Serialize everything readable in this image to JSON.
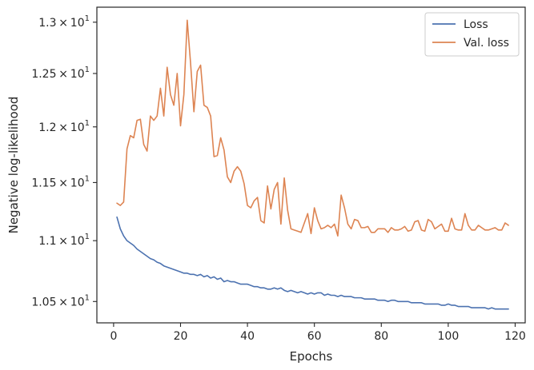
{
  "chart_data": {
    "type": "line",
    "title": "",
    "xlabel": "Epochs",
    "ylabel": "Negative log-likelihood",
    "xlim": [
      -5,
      123
    ],
    "ylim": [
      10.33,
      13.15
    ],
    "yscale": "log",
    "grid": false,
    "legend_position": "top-right",
    "x_ticks": [
      0,
      20,
      40,
      60,
      80,
      100,
      120
    ],
    "x_tick_labels": [
      "0",
      "20",
      "40",
      "60",
      "80",
      "100",
      "120"
    ],
    "y_ticks": [
      10.5,
      11,
      11.5,
      12,
      12.5,
      13
    ],
    "y_tick_labels": [
      {
        "mantissa": "1.05",
        "exp": "1"
      },
      {
        "mantissa": "1.1",
        "exp": "1"
      },
      {
        "mantissa": "1.15",
        "exp": "1"
      },
      {
        "mantissa": "1.2",
        "exp": "1"
      },
      {
        "mantissa": "1.25",
        "exp": "1"
      },
      {
        "mantissa": "1.3",
        "exp": "1"
      }
    ],
    "series": [
      {
        "name": "Loss",
        "color": "#4c72b0",
        "points": [
          [
            1,
            11.2
          ],
          [
            2,
            11.1
          ],
          [
            3,
            11.04
          ],
          [
            4,
            11.0
          ],
          [
            5,
            10.98
          ],
          [
            6,
            10.96
          ],
          [
            7,
            10.93
          ],
          [
            8,
            10.91
          ],
          [
            9,
            10.89
          ],
          [
            10,
            10.87
          ],
          [
            11,
            10.85
          ],
          [
            12,
            10.84
          ],
          [
            13,
            10.82
          ],
          [
            14,
            10.81
          ],
          [
            15,
            10.79
          ],
          [
            16,
            10.78
          ],
          [
            17,
            10.77
          ],
          [
            18,
            10.76
          ],
          [
            19,
            10.75
          ],
          [
            20,
            10.74
          ],
          [
            21,
            10.73
          ],
          [
            22,
            10.73
          ],
          [
            23,
            10.72
          ],
          [
            24,
            10.72
          ],
          [
            25,
            10.71
          ],
          [
            26,
            10.72
          ],
          [
            27,
            10.7
          ],
          [
            28,
            10.71
          ],
          [
            29,
            10.69
          ],
          [
            30,
            10.7
          ],
          [
            31,
            10.68
          ],
          [
            32,
            10.69
          ],
          [
            33,
            10.66
          ],
          [
            34,
            10.67
          ],
          [
            35,
            10.66
          ],
          [
            36,
            10.66
          ],
          [
            37,
            10.65
          ],
          [
            38,
            10.64
          ],
          [
            39,
            10.64
          ],
          [
            40,
            10.64
          ],
          [
            41,
            10.63
          ],
          [
            42,
            10.62
          ],
          [
            43,
            10.62
          ],
          [
            44,
            10.61
          ],
          [
            45,
            10.61
          ],
          [
            46,
            10.6
          ],
          [
            47,
            10.6
          ],
          [
            48,
            10.61
          ],
          [
            49,
            10.6
          ],
          [
            50,
            10.61
          ],
          [
            51,
            10.59
          ],
          [
            52,
            10.58
          ],
          [
            53,
            10.59
          ],
          [
            54,
            10.58
          ],
          [
            55,
            10.57
          ],
          [
            56,
            10.58
          ],
          [
            57,
            10.57
          ],
          [
            58,
            10.56
          ],
          [
            59,
            10.57
          ],
          [
            60,
            10.56
          ],
          [
            61,
            10.57
          ],
          [
            62,
            10.57
          ],
          [
            63,
            10.55
          ],
          [
            64,
            10.56
          ],
          [
            65,
            10.55
          ],
          [
            66,
            10.55
          ],
          [
            67,
            10.54
          ],
          [
            68,
            10.55
          ],
          [
            69,
            10.54
          ],
          [
            70,
            10.54
          ],
          [
            71,
            10.54
          ],
          [
            72,
            10.53
          ],
          [
            73,
            10.53
          ],
          [
            74,
            10.53
          ],
          [
            75,
            10.52
          ],
          [
            76,
            10.52
          ],
          [
            77,
            10.52
          ],
          [
            78,
            10.52
          ],
          [
            79,
            10.51
          ],
          [
            80,
            10.51
          ],
          [
            81,
            10.51
          ],
          [
            82,
            10.5
          ],
          [
            83,
            10.51
          ],
          [
            84,
            10.51
          ],
          [
            85,
            10.5
          ],
          [
            86,
            10.5
          ],
          [
            87,
            10.5
          ],
          [
            88,
            10.5
          ],
          [
            89,
            10.49
          ],
          [
            90,
            10.49
          ],
          [
            91,
            10.49
          ],
          [
            92,
            10.49
          ],
          [
            93,
            10.48
          ],
          [
            94,
            10.48
          ],
          [
            95,
            10.48
          ],
          [
            96,
            10.48
          ],
          [
            97,
            10.48
          ],
          [
            98,
            10.47
          ],
          [
            99,
            10.47
          ],
          [
            100,
            10.48
          ],
          [
            101,
            10.47
          ],
          [
            102,
            10.47
          ],
          [
            103,
            10.46
          ],
          [
            104,
            10.46
          ],
          [
            105,
            10.46
          ],
          [
            106,
            10.46
          ],
          [
            107,
            10.45
          ],
          [
            108,
            10.45
          ],
          [
            109,
            10.45
          ],
          [
            110,
            10.45
          ],
          [
            111,
            10.45
          ],
          [
            112,
            10.44
          ],
          [
            113,
            10.45
          ],
          [
            114,
            10.44
          ],
          [
            115,
            10.44
          ],
          [
            116,
            10.44
          ],
          [
            117,
            10.44
          ],
          [
            118,
            10.44
          ]
        ]
      },
      {
        "name": "Val. loss",
        "color": "#dd8452",
        "points": [
          [
            1,
            11.32
          ],
          [
            2,
            11.3
          ],
          [
            3,
            11.33
          ],
          [
            4,
            11.8
          ],
          [
            5,
            11.92
          ],
          [
            6,
            11.9
          ],
          [
            7,
            12.06
          ],
          [
            8,
            12.07
          ],
          [
            9,
            11.84
          ],
          [
            10,
            11.78
          ],
          [
            11,
            12.1
          ],
          [
            12,
            12.06
          ],
          [
            13,
            12.1
          ],
          [
            14,
            12.36
          ],
          [
            15,
            12.1
          ],
          [
            16,
            12.56
          ],
          [
            17,
            12.3
          ],
          [
            18,
            12.2
          ],
          [
            19,
            12.5
          ],
          [
            20,
            12.01
          ],
          [
            21,
            12.3
          ],
          [
            22,
            13.02
          ],
          [
            23,
            12.6
          ],
          [
            24,
            12.14
          ],
          [
            25,
            12.52
          ],
          [
            26,
            12.58
          ],
          [
            27,
            12.2
          ],
          [
            28,
            12.18
          ],
          [
            29,
            12.1
          ],
          [
            30,
            11.73
          ],
          [
            31,
            11.74
          ],
          [
            32,
            11.9
          ],
          [
            33,
            11.79
          ],
          [
            34,
            11.55
          ],
          [
            35,
            11.5
          ],
          [
            36,
            11.6
          ],
          [
            37,
            11.64
          ],
          [
            38,
            11.6
          ],
          [
            39,
            11.49
          ],
          [
            40,
            11.3
          ],
          [
            41,
            11.28
          ],
          [
            42,
            11.34
          ],
          [
            43,
            11.37
          ],
          [
            44,
            11.17
          ],
          [
            45,
            11.15
          ],
          [
            46,
            11.47
          ],
          [
            47,
            11.27
          ],
          [
            48,
            11.44
          ],
          [
            49,
            11.5
          ],
          [
            50,
            11.14
          ],
          [
            51,
            11.54
          ],
          [
            52,
            11.26
          ],
          [
            53,
            11.1
          ],
          [
            54,
            11.09
          ],
          [
            55,
            11.08
          ],
          [
            56,
            11.07
          ],
          [
            57,
            11.15
          ],
          [
            58,
            11.23
          ],
          [
            59,
            11.06
          ],
          [
            60,
            11.28
          ],
          [
            61,
            11.17
          ],
          [
            62,
            11.1
          ],
          [
            63,
            11.11
          ],
          [
            64,
            11.13
          ],
          [
            65,
            11.11
          ],
          [
            66,
            11.14
          ],
          [
            67,
            11.04
          ],
          [
            68,
            11.39
          ],
          [
            69,
            11.28
          ],
          [
            70,
            11.14
          ],
          [
            71,
            11.1
          ],
          [
            72,
            11.18
          ],
          [
            73,
            11.17
          ],
          [
            74,
            11.11
          ],
          [
            75,
            11.11
          ],
          [
            76,
            11.12
          ],
          [
            77,
            11.07
          ],
          [
            78,
            11.07
          ],
          [
            79,
            11.1
          ],
          [
            80,
            11.1
          ],
          [
            81,
            11.1
          ],
          [
            82,
            11.07
          ],
          [
            83,
            11.11
          ],
          [
            84,
            11.09
          ],
          [
            85,
            11.09
          ],
          [
            86,
            11.1
          ],
          [
            87,
            11.12
          ],
          [
            88,
            11.08
          ],
          [
            89,
            11.09
          ],
          [
            90,
            11.16
          ],
          [
            91,
            11.17
          ],
          [
            92,
            11.09
          ],
          [
            93,
            11.08
          ],
          [
            94,
            11.18
          ],
          [
            95,
            11.16
          ],
          [
            96,
            11.1
          ],
          [
            97,
            11.12
          ],
          [
            98,
            11.14
          ],
          [
            99,
            11.08
          ],
          [
            100,
            11.08
          ],
          [
            101,
            11.19
          ],
          [
            102,
            11.1
          ],
          [
            103,
            11.09
          ],
          [
            104,
            11.09
          ],
          [
            105,
            11.23
          ],
          [
            106,
            11.13
          ],
          [
            107,
            11.09
          ],
          [
            108,
            11.09
          ],
          [
            109,
            11.13
          ],
          [
            110,
            11.11
          ],
          [
            111,
            11.09
          ],
          [
            112,
            11.09
          ],
          [
            113,
            11.1
          ],
          [
            114,
            11.11
          ],
          [
            115,
            11.09
          ],
          [
            116,
            11.09
          ],
          [
            117,
            11.15
          ],
          [
            118,
            11.13
          ]
        ]
      }
    ]
  }
}
